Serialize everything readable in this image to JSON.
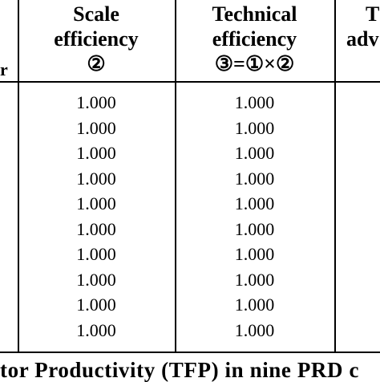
{
  "header": {
    "scale_efficiency": [
      "Scale",
      "efficiency",
      "②"
    ],
    "technical_efficiency": [
      "Technical",
      "efficiency",
      "③=①×②"
    ],
    "next_column": [
      "T",
      "adv"
    ]
  },
  "left_partial_mark": "r",
  "rows": [
    {
      "scale": "1.000",
      "technical": "1.000"
    },
    {
      "scale": "1.000",
      "technical": "1.000"
    },
    {
      "scale": "1.000",
      "technical": "1.000"
    },
    {
      "scale": "1.000",
      "technical": "1.000"
    },
    {
      "scale": "1.000",
      "technical": "1.000"
    },
    {
      "scale": "1.000",
      "technical": "1.000"
    },
    {
      "scale": "1.000",
      "technical": "1.000"
    },
    {
      "scale": "1.000",
      "technical": "1.000"
    },
    {
      "scale": "1.000",
      "technical": "1.000"
    },
    {
      "scale": "1.000",
      "technical": "1.000"
    }
  ],
  "caption": "tor Productivity (TFP) in nine PRD c"
}
